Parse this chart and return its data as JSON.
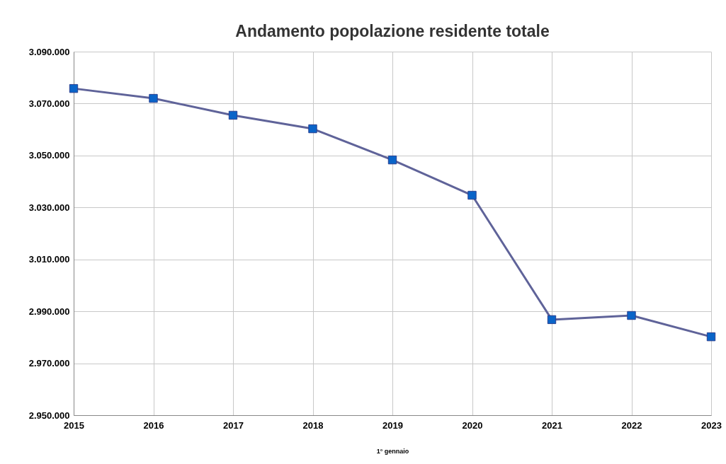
{
  "chart_data": {
    "type": "line",
    "title": "Andamento popolazione residente totale",
    "xlabel": "1° gennaio",
    "categories": [
      "2015",
      "2016",
      "2017",
      "2018",
      "2019",
      "2020",
      "2021",
      "2022",
      "2023"
    ],
    "series": [
      {
        "color": "#5f6399",
        "values": [
          3075800,
          3072000,
          3065500,
          3060300,
          3048300,
          3034700,
          2986800,
          2988400,
          2980200
        ]
      }
    ],
    "ylim": [
      2950000,
      3090000
    ],
    "yticks": [
      {
        "value": 2950000,
        "label": "2.950.000"
      },
      {
        "value": 2970000,
        "label": "2.970.000"
      },
      {
        "value": 2990000,
        "label": "2.990.000"
      },
      {
        "value": 3010000,
        "label": "3.010.000"
      },
      {
        "value": 3030000,
        "label": "3.030.000"
      },
      {
        "value": 3050000,
        "label": "3.050.000"
      },
      {
        "value": 3070000,
        "label": "3.070.000"
      },
      {
        "value": 3090000,
        "label": "3.090.000"
      }
    ],
    "grid": true,
    "marker": "square",
    "line_style": "solid"
  }
}
